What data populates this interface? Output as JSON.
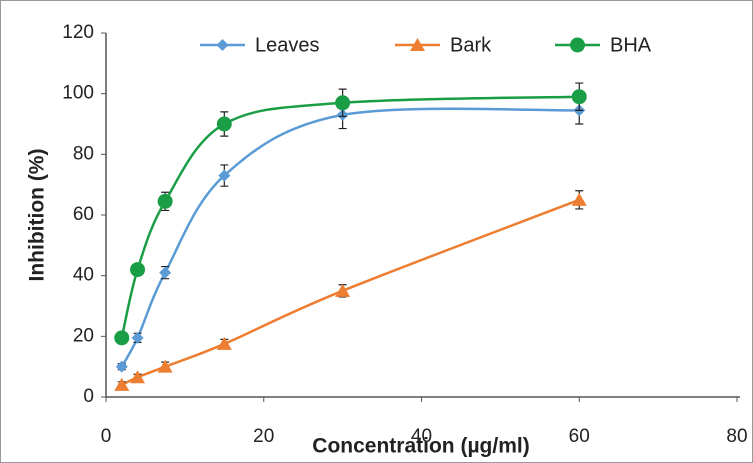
{
  "chart_data": {
    "type": "line",
    "smooth": true,
    "xlabel": "Concentration (µg/ml)",
    "ylabel": "Inhibition (%)",
    "x": [
      2,
      4,
      7.5,
      15,
      30,
      60
    ],
    "series": [
      {
        "name": "Leaves",
        "color": "#5b9bd5",
        "marker": "diamond",
        "values": [
          10,
          19.5,
          41,
          73,
          93,
          94.5
        ],
        "errors": [
          1,
          1.5,
          2,
          3.5,
          4.5,
          4.5
        ]
      },
      {
        "name": "Bark",
        "color": "#ed7d31",
        "marker": "triangle",
        "values": [
          4,
          6.5,
          10,
          17.5,
          35,
          65
        ],
        "errors": [
          1,
          1,
          1.5,
          1.5,
          2,
          3
        ]
      },
      {
        "name": "BHA",
        "color": "#1a9e45",
        "marker": "circle",
        "values": [
          19.5,
          42,
          64.5,
          90,
          97,
          99
        ],
        "errors": [
          1.5,
          1.5,
          3,
          4,
          4.5,
          4.5
        ]
      }
    ],
    "xlim": [
      0,
      80
    ],
    "xticks": [
      0,
      20,
      40,
      60,
      80
    ],
    "ylim": [
      0,
      120
    ],
    "yticks": [
      0,
      20,
      40,
      60,
      80,
      100,
      120
    ],
    "grid": false,
    "legend": "top"
  }
}
